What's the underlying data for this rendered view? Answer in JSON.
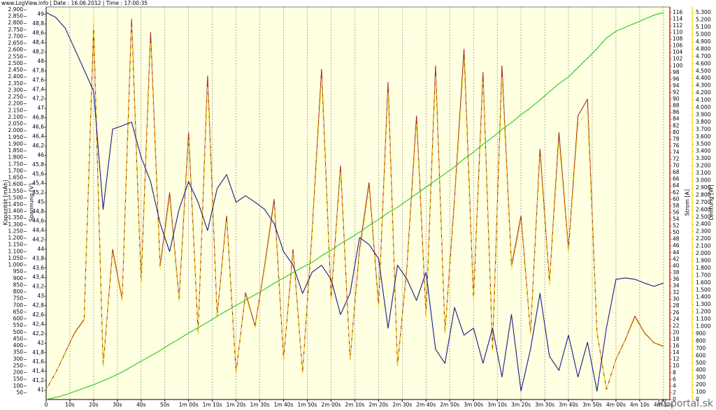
{
  "chart_data": {
    "type": "line",
    "header": "www.LogView.info   |   Date : 16.06.2012   |   Time : 17:00:35",
    "watermark": "RCportal.sk",
    "ylabel": "Kapazität [mAh]",
    "y2label": "Spannung [V]",
    "y3label": "Strom [A]",
    "y4label": "Leistung [W]",
    "grid": true,
    "x": [
      0,
      4,
      8,
      12,
      16,
      20,
      24,
      28,
      32,
      36,
      40,
      44,
      48,
      52,
      56,
      60,
      64,
      68,
      72,
      76,
      80,
      84,
      88,
      92,
      96,
      100,
      104,
      108,
      112,
      116,
      120,
      124,
      128,
      132,
      136,
      140,
      144,
      148,
      152,
      156,
      160,
      164,
      168,
      172,
      176,
      180,
      184,
      188,
      192,
      196,
      200,
      204,
      208,
      212,
      216,
      220,
      224,
      228,
      232,
      236,
      240,
      244,
      248,
      252,
      256,
      260
    ],
    "xlim": [
      0,
      262.7
    ],
    "xticks": [
      0,
      {
        "value": 10,
        "label": "10s"
      },
      {
        "value": 20,
        "label": "20s"
      },
      {
        "value": 30,
        "label": "30s"
      },
      {
        "value": 40,
        "label": "40s"
      },
      {
        "value": 50,
        "label": "50s"
      },
      {
        "value": 60,
        "label": "1m 00s"
      },
      {
        "value": 70,
        "label": "1m 10s"
      },
      {
        "value": 80,
        "label": "1m 20s"
      },
      {
        "value": 90,
        "label": "1m 30s"
      },
      {
        "value": 100,
        "label": "1m 40s"
      },
      {
        "value": 110,
        "label": "1m 50s"
      },
      {
        "value": 120,
        "label": "2m 00s"
      },
      {
        "value": 130,
        "label": "2m 10s"
      },
      {
        "value": 140,
        "label": "2m 20s"
      },
      {
        "value": 150,
        "label": "2m 30s"
      },
      {
        "value": 160,
        "label": "2m 40s"
      },
      {
        "value": 170,
        "label": "2m 50s"
      },
      {
        "value": 180,
        "label": "3m 00s"
      },
      {
        "value": 190,
        "label": "3m 10s"
      },
      {
        "value": 200,
        "label": "3m 20s"
      },
      {
        "value": 210,
        "label": "3m 30s"
      },
      {
        "value": 220,
        "label": "3m 40s"
      },
      {
        "value": 230,
        "label": "3m 50s"
      },
      {
        "value": 240,
        "label": "4m 00s"
      },
      {
        "value": 250,
        "label": "4m 10s"
      },
      {
        "value": 260,
        "label": "4m 20s"
      }
    ],
    "ylim": [
      0,
      2900
    ],
    "yticks": [
      50,
      100,
      150,
      200,
      250,
      300,
      350,
      400,
      450,
      500,
      550,
      600,
      650,
      700,
      750,
      800,
      850,
      900,
      950,
      {
        "value": 1000,
        "label": "1.000"
      },
      {
        "value": 1050,
        "label": "1.050"
      },
      {
        "value": 1100,
        "label": "1.100"
      },
      {
        "value": 1150,
        "label": "1.150"
      },
      {
        "value": 1200,
        "label": "1.200"
      },
      {
        "value": 1250,
        "label": "1.250"
      },
      {
        "value": 1300,
        "label": "1.300"
      },
      {
        "value": 1350,
        "label": "1.350"
      },
      {
        "value": 1400,
        "label": "1.400"
      },
      {
        "value": 1450,
        "label": "1.450"
      },
      {
        "value": 1500,
        "label": "1.500"
      },
      {
        "value": 1550,
        "label": "1.550"
      },
      {
        "value": 1600,
        "label": "1.600"
      },
      {
        "value": 1650,
        "label": "1.650"
      },
      {
        "value": 1700,
        "label": "1.700"
      },
      {
        "value": 1750,
        "label": "1.750"
      },
      {
        "value": 1800,
        "label": "1.800"
      },
      {
        "value": 1850,
        "label": "1.850"
      },
      {
        "value": 1900,
        "label": "1.900"
      },
      {
        "value": 1950,
        "label": "1.950"
      },
      {
        "value": 2000,
        "label": "2.000"
      },
      {
        "value": 2050,
        "label": "2.050"
      },
      {
        "value": 2100,
        "label": "2.100"
      },
      {
        "value": 2150,
        "label": "2.150"
      },
      {
        "value": 2200,
        "label": "2.200"
      },
      {
        "value": 2250,
        "label": "2.250"
      },
      {
        "value": 2300,
        "label": "2.300"
      },
      {
        "value": 2350,
        "label": "2.350"
      },
      {
        "value": 2400,
        "label": "2.400"
      },
      {
        "value": 2450,
        "label": "2.450"
      },
      {
        "value": 2500,
        "label": "2.500"
      },
      {
        "value": 2550,
        "label": "2.550"
      },
      {
        "value": 2600,
        "label": "2.600"
      },
      {
        "value": 2650,
        "label": "2.650"
      },
      {
        "value": 2700,
        "label": "2.700"
      },
      {
        "value": 2750,
        "label": "2.750"
      },
      {
        "value": 2800,
        "label": "2.800"
      },
      {
        "value": 2850,
        "label": "2.850"
      },
      {
        "value": 2900,
        "label": "2.900"
      }
    ],
    "y2lim": [
      40.8,
      49.1
    ],
    "y2ticks": [
      41,
      {
        "value": 41.2,
        "label": "41,2"
      },
      {
        "value": 41.4,
        "label": "41,4"
      },
      {
        "value": 41.6,
        "label": "41,6"
      },
      {
        "value": 41.8,
        "label": "41,8"
      },
      42,
      {
        "value": 42.2,
        "label": "42,2"
      },
      {
        "value": 42.4,
        "label": "42,4"
      },
      {
        "value": 42.6,
        "label": "42,6"
      },
      {
        "value": 42.8,
        "label": "42,8"
      },
      43,
      {
        "value": 43.2,
        "label": "43,2"
      },
      {
        "value": 43.4,
        "label": "43,4"
      },
      {
        "value": 43.6,
        "label": "43,6"
      },
      {
        "value": 43.8,
        "label": "43,8"
      },
      44,
      {
        "value": 44.2,
        "label": "44,2"
      },
      {
        "value": 44.4,
        "label": "44,4"
      },
      {
        "value": 44.6,
        "label": "44,6"
      },
      {
        "value": 44.8,
        "label": "44,8"
      },
      45,
      {
        "value": 45.2,
        "label": "45,2"
      },
      {
        "value": 45.4,
        "label": "45,4"
      },
      {
        "value": 45.6,
        "label": "45,6"
      },
      {
        "value": 45.8,
        "label": "45,8"
      },
      46,
      {
        "value": 46.2,
        "label": "46,2"
      },
      {
        "value": 46.4,
        "label": "46,4"
      },
      {
        "value": 46.6,
        "label": "46,6"
      },
      {
        "value": 46.8,
        "label": "46,8"
      },
      47,
      {
        "value": 47.2,
        "label": "47,2"
      },
      {
        "value": 47.4,
        "label": "47,4"
      },
      {
        "value": 47.6,
        "label": "47,6"
      },
      {
        "value": 47.8,
        "label": "47,8"
      },
      48,
      {
        "value": 48.2,
        "label": "48,2"
      },
      {
        "value": 48.4,
        "label": "48,4"
      },
      {
        "value": 48.6,
        "label": "48,6"
      },
      {
        "value": 48.8,
        "label": "48,8"
      },
      49
    ],
    "y3lim": [
      0,
      116.8
    ],
    "y3ticks": [
      0,
      2,
      4,
      6,
      8,
      10,
      12,
      14,
      16,
      18,
      20,
      22,
      24,
      26,
      28,
      30,
      32,
      34,
      36,
      38,
      40,
      42,
      44,
      46,
      48,
      50,
      52,
      54,
      56,
      58,
      60,
      62,
      64,
      66,
      68,
      70,
      72,
      74,
      76,
      78,
      80,
      82,
      84,
      86,
      88,
      90,
      92,
      94,
      96,
      98,
      100,
      102,
      104,
      106,
      108,
      110,
      112,
      114,
      116
    ],
    "y4lim": [
      0,
      5340
    ],
    "y4ticks": [
      0,
      100,
      200,
      300,
      400,
      500,
      600,
      700,
      800,
      900,
      {
        "value": 1000,
        "label": "1.000"
      },
      {
        "value": 1100,
        "label": "1.100"
      },
      {
        "value": 1200,
        "label": "1.200"
      },
      {
        "value": 1300,
        "label": "1.300"
      },
      {
        "value": 1400,
        "label": "1.400"
      },
      {
        "value": 1500,
        "label": "1.500"
      },
      {
        "value": 1600,
        "label": "1.600"
      },
      {
        "value": 1700,
        "label": "1.700"
      },
      {
        "value": 1800,
        "label": "1.800"
      },
      {
        "value": 1900,
        "label": "1.900"
      },
      {
        "value": 2000,
        "label": "2.000"
      },
      {
        "value": 2100,
        "label": "2.100"
      },
      {
        "value": 2200,
        "label": "2.200"
      },
      {
        "value": 2300,
        "label": "2.300"
      },
      {
        "value": 2400,
        "label": "2.400"
      },
      {
        "value": 2500,
        "label": "2.500"
      },
      {
        "value": 2600,
        "label": "2.600"
      },
      {
        "value": 2700,
        "label": "2.700"
      },
      {
        "value": 2800,
        "label": "2.800"
      },
      {
        "value": 2900,
        "label": "2.900"
      },
      {
        "value": 3000,
        "label": "3.000"
      },
      {
        "value": 3100,
        "label": "3.100"
      },
      {
        "value": 3200,
        "label": "3.200"
      },
      {
        "value": 3300,
        "label": "3.300"
      },
      {
        "value": 3400,
        "label": "3.400"
      },
      {
        "value": 3500,
        "label": "3.500"
      },
      {
        "value": 3600,
        "label": "3.600"
      },
      {
        "value": 3700,
        "label": "3.700"
      },
      {
        "value": 3800,
        "label": "3.800"
      },
      {
        "value": 3900,
        "label": "3.900"
      },
      {
        "value": 4000,
        "label": "4.000"
      },
      {
        "value": 4100,
        "label": "4.100"
      },
      {
        "value": 4200,
        "label": "4.200"
      },
      {
        "value": 4300,
        "label": "4.300"
      },
      {
        "value": 4400,
        "label": "4.400"
      },
      {
        "value": 4500,
        "label": "4.500"
      },
      {
        "value": 4600,
        "label": "4.600"
      },
      {
        "value": 4700,
        "label": "4.700"
      },
      {
        "value": 4800,
        "label": "4.800"
      },
      {
        "value": 4900,
        "label": "4.900"
      },
      {
        "value": 5000,
        "label": "5.000"
      },
      {
        "value": 5100,
        "label": "5.100"
      },
      {
        "value": 5200,
        "label": "5.200"
      },
      {
        "value": 5300,
        "label": "5.300"
      }
    ],
    "series": [
      {
        "axis": "y",
        "color": "#22cc22",
        "values": [
          0,
          15,
          35,
          60,
          85,
          110,
          140,
          170,
          205,
          245,
          285,
          325,
          365,
          410,
          450,
          495,
          535,
          575,
          620,
          660,
          700,
          740,
          780,
          820,
          865,
          905,
          945,
          985,
          1020,
          1070,
          1110,
          1160,
          1200,
          1245,
          1295,
          1340,
          1390,
          1430,
          1480,
          1530,
          1580,
          1630,
          1680,
          1730,
          1790,
          1840,
          1900,
          1950,
          2010,
          2060,
          2120,
          2170,
          2230,
          2290,
          2350,
          2400,
          2470,
          2540,
          2610,
          2690,
          2740,
          2770,
          2800,
          2830,
          2860,
          2880
        ]
      },
      {
        "axis": "y2",
        "color": "#1a1a8c",
        "values": [
          49.04,
          48.94,
          48.71,
          48.27,
          47.82,
          47.37,
          44.85,
          46.56,
          46.63,
          46.71,
          45.96,
          45.44,
          44.55,
          43.95,
          44.85,
          45.44,
          45.0,
          44.4,
          45.29,
          45.59,
          45.0,
          45.14,
          45.0,
          44.85,
          44.55,
          43.95,
          43.66,
          43.06,
          43.51,
          43.66,
          43.36,
          42.61,
          43.06,
          44.25,
          44.1,
          43.8,
          42.32,
          43.66,
          43.36,
          42.91,
          43.51,
          41.87,
          41.57,
          42.76,
          42.17,
          42.32,
          41.57,
          42.32,
          41.28,
          42.61,
          40.98,
          41.87,
          43.06,
          41.72,
          41.42,
          42.17,
          41.28,
          42.02,
          40.98,
          42.32,
          43.36,
          43.39,
          43.36,
          43.28,
          43.21,
          43.28
        ]
      },
      {
        "axis": "y3",
        "color": "#a52a2a",
        "values": [
          3,
          8,
          14,
          20,
          24,
          112,
          10,
          45,
          30,
          114,
          35,
          110,
          40,
          62,
          30,
          80,
          20,
          97,
          25,
          55,
          8,
          32,
          22,
          40,
          60,
          12,
          45,
          8,
          50,
          99,
          30,
          70,
          12,
          45,
          65,
          28,
          95,
          10,
          40,
          85,
          25,
          100,
          20,
          60,
          105,
          30,
          98,
          15,
          100,
          40,
          55,
          20,
          75,
          35,
          80,
          45,
          85,
          90,
          20,
          3,
          12,
          18,
          25,
          20,
          17,
          16
        ]
      },
      {
        "axis": "y4",
        "color": "#f5e61e",
        "values": [
          140,
          360,
          630,
          900,
          1080,
          5250,
          450,
          2000,
          1340,
          5100,
          1560,
          4900,
          1780,
          2750,
          1340,
          3550,
          900,
          4300,
          1120,
          2450,
          360,
          1430,
          980,
          1780,
          2660,
          540,
          2000,
          360,
          2220,
          4400,
          1340,
          3110,
          540,
          2000,
          2880,
          1250,
          4200,
          450,
          1780,
          3770,
          1120,
          4430,
          900,
          2660,
          4650,
          1340,
          4350,
          670,
          4420,
          1780,
          2440,
          900,
          3320,
          1560,
          3540,
          2000,
          3760,
          3950,
          900,
          140,
          540,
          810,
          1120,
          900,
          770,
          720
        ]
      }
    ]
  }
}
